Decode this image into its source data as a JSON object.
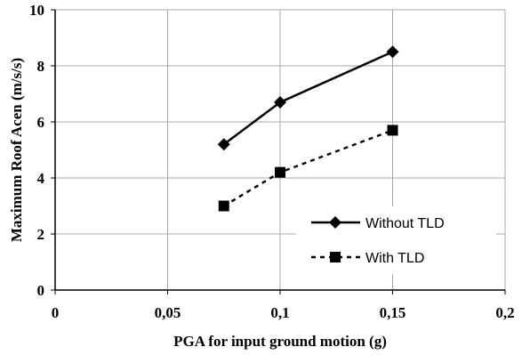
{
  "chart_data": {
    "type": "line",
    "xlabel": "PGA for input ground motion (g)",
    "ylabel": "Maximum Roof Acen (m/s/s)",
    "xlim": [
      0,
      0.2
    ],
    "ylim": [
      0,
      10
    ],
    "x_ticks": [
      "0",
      "0,05",
      "0,1",
      "0,15",
      "0,2"
    ],
    "y_ticks": [
      "0",
      "2",
      "4",
      "6",
      "8",
      "10"
    ],
    "grid": true,
    "legend_position": "bottom-right",
    "series": [
      {
        "name": "Without TLD",
        "marker": "diamond",
        "line_style": "solid",
        "x": [
          0.075,
          0.1,
          0.15
        ],
        "y": [
          5.2,
          6.7,
          8.5
        ]
      },
      {
        "name": "With TLD",
        "marker": "square",
        "line_style": "dashed",
        "x": [
          0.075,
          0.1,
          0.15
        ],
        "y": [
          3.0,
          4.2,
          5.7
        ]
      }
    ]
  }
}
